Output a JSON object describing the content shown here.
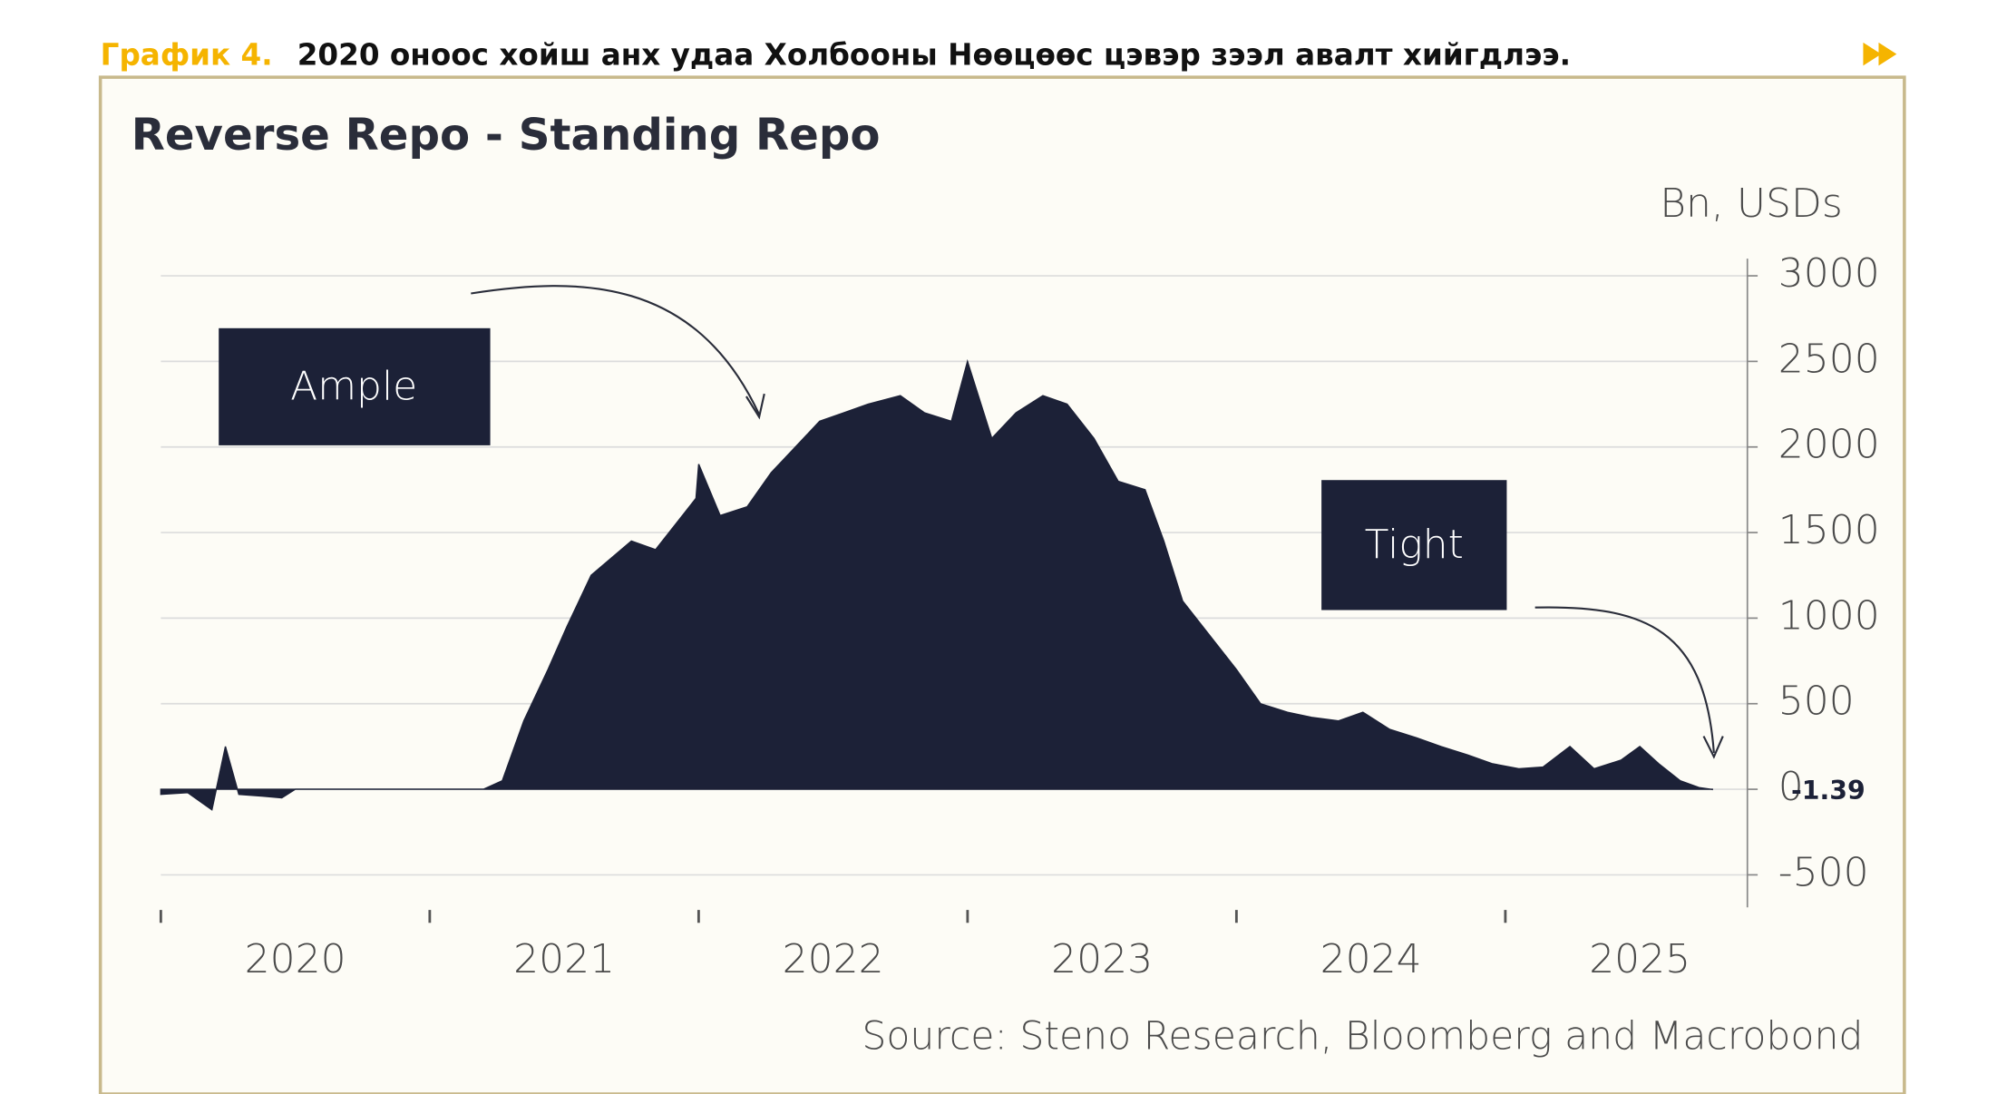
{
  "header": {
    "label": "График 4.",
    "text": "2020 оноос хойш анх удаа Холбооны Нөөцөөс цэвэр зээл авалт хийгдлээ."
  },
  "chart_data": {
    "type": "area",
    "title": "Reverse Repo - Standing Repo",
    "unit_label": "Bn, USDs",
    "source": "Source: Steno Research, Bloomberg and Macrobond",
    "annotations": [
      "Ample",
      "Tight"
    ],
    "color": "#1c2137",
    "x": [
      2020.0,
      2020.1,
      2020.19,
      2020.24,
      2020.29,
      2020.38,
      2020.45,
      2020.5,
      2021.2,
      2021.27,
      2021.35,
      2021.44,
      2021.51,
      2021.6,
      2021.75,
      2021.84,
      2021.99,
      2022.0,
      2022.08,
      2022.18,
      2022.27,
      2022.36,
      2022.45,
      2022.54,
      2022.63,
      2022.75,
      2022.84,
      2022.94,
      2023.0,
      2023.09,
      2023.18,
      2023.28,
      2023.37,
      2023.47,
      2023.56,
      2023.66,
      2023.73,
      2023.8,
      2023.9,
      2024.0,
      2024.09,
      2024.19,
      2024.28,
      2024.38,
      2024.47,
      2024.57,
      2024.67,
      2024.76,
      2024.86,
      2024.95,
      2025.05,
      2025.14,
      2025.24,
      2025.33,
      2025.43,
      2025.5,
      2025.57,
      2025.65,
      2025.72,
      2025.77
    ],
    "values": [
      -30,
      -20,
      -120,
      250,
      -30,
      -40,
      -50,
      0,
      0,
      50,
      400,
      700,
      950,
      1250,
      1450,
      1400,
      1700,
      1900,
      1600,
      1650,
      1850,
      2000,
      2150,
      2200,
      2250,
      2300,
      2200,
      2150,
      2500,
      2050,
      2200,
      2300,
      2250,
      2050,
      1800,
      1750,
      1450,
      1100,
      900,
      700,
      500,
      450,
      420,
      400,
      450,
      350,
      300,
      250,
      200,
      150,
      120,
      130,
      250,
      120,
      170,
      250,
      150,
      50,
      10,
      -1.39
    ],
    "xlim": [
      2020,
      2025.9
    ],
    "xticks": [
      2020,
      2021,
      2022,
      2023,
      2024,
      2025
    ],
    "ylim": [
      -690,
      3100
    ],
    "yticks": [
      -500,
      0,
      500,
      1000,
      1500,
      2000,
      2500,
      3000
    ],
    "grid": true
  }
}
